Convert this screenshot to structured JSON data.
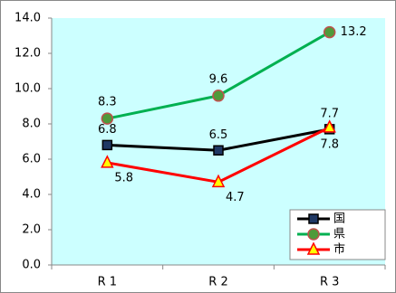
{
  "chart_data": {
    "type": "line",
    "categories": [
      "R 1",
      "R 2",
      "R 3"
    ],
    "series": [
      {
        "name": "国",
        "color": "#000000",
        "values": [
          6.8,
          6.5,
          7.7
        ]
      },
      {
        "name": "県",
        "color": "#00b050",
        "values": [
          8.3,
          9.6,
          13.2
        ]
      },
      {
        "name": "市",
        "color": "#ff0000",
        "values": [
          5.8,
          4.7,
          7.8
        ]
      }
    ],
    "ylim": [
      0,
      14
    ],
    "yticks": [
      {
        "value": 0,
        "label": "0.0"
      },
      {
        "value": 2,
        "label": "2.0"
      },
      {
        "value": 4,
        "label": "4.0"
      },
      {
        "value": 6,
        "label": "6.0"
      },
      {
        "value": 8,
        "label": "8.0"
      },
      {
        "value": 10,
        "label": "10.0"
      },
      {
        "value": 12,
        "label": "12.0"
      },
      {
        "value": 14,
        "label": "14.0"
      }
    ],
    "grid": false,
    "legend": "bottom-right",
    "background": "#ccffff"
  }
}
